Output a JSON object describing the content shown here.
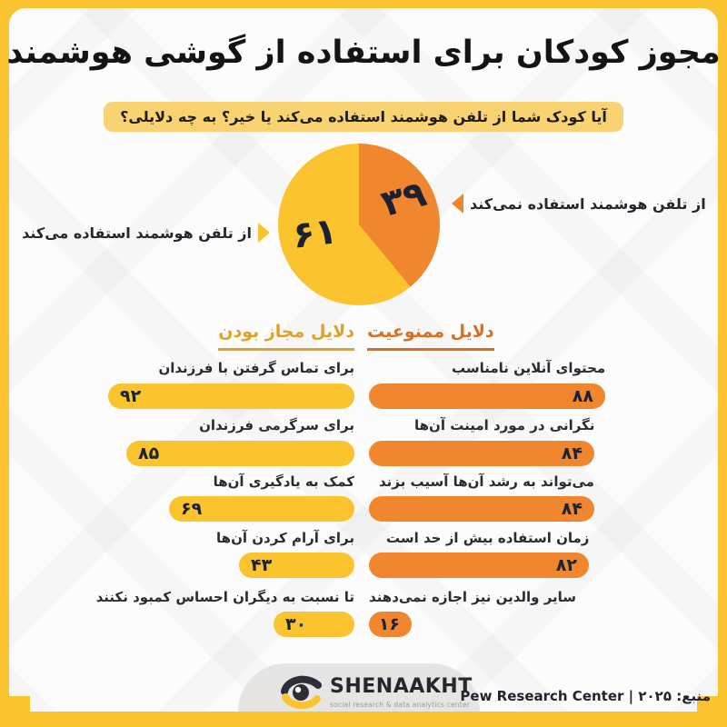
{
  "colors": {
    "frame_yellow": "#FCC330",
    "bar_yellow": "#FBC32D",
    "bar_orange": "#F0862D",
    "header_orange": "#D8701F",
    "header_gold": "#E0A226",
    "number_dark": "#1C2433"
  },
  "title": "مجوز کودکان برای استفاده از گوشی هوشمند",
  "subtitle": "آیا کودک شما از تلفن هوشمند استفاده می‌کند یا خیر؟ به چه دلایلی؟",
  "pie": {
    "not_uses": {
      "label": "از تلفن هوشمند استفاده نمی‌کند",
      "value": 39,
      "display": "۳۹"
    },
    "uses": {
      "label": "از تلفن هوشمند استفاده می‌کند",
      "value": 61,
      "display": "۶۱"
    }
  },
  "bars": {
    "right": {
      "header": "دلایل ممنوعیت",
      "rows": [
        {
          "label": "محتوای آنلاین نامناسب",
          "value": 88,
          "display": "۸۸"
        },
        {
          "label": "نگرانی در مورد امینت آن‌ها",
          "value": 84,
          "display": "۸۴"
        },
        {
          "label": "می‌تواند به رشد آن‌ها آسیب بزند",
          "value": 84,
          "display": "۸۴"
        },
        {
          "label": "زمان استفاده بیش از حد است",
          "value": 82,
          "display": "۸۲"
        },
        {
          "label": "سایر والدین نیز اجازه نمی‌دهند",
          "value": 16,
          "display": "۱۶"
        }
      ]
    },
    "left": {
      "header": "دلایل مجاز بودن",
      "rows": [
        {
          "label": "برای تماس گرفتن با فرزندان",
          "value": 92,
          "display": "۹۲"
        },
        {
          "label": "برای سرگرمی فرزندان",
          "value": 85,
          "display": "۸۵"
        },
        {
          "label": "کمک به یادگیری آن‌ها",
          "value": 69,
          "display": "۶۹"
        },
        {
          "label": "برای آرام کردن آن‌ها",
          "value": 43,
          "display": "۴۳"
        },
        {
          "label": "تا نسبت به دیگران احساس کمبود نکنند",
          "value": 30,
          "display": "۳۰"
        }
      ]
    }
  },
  "footer": {
    "brand": "SHENAAKHT",
    "tagline": "social research & data analytics center",
    "source": "منبع: ۲۰۲۵ | Pew Research Center"
  },
  "chart_data": [
    {
      "type": "pie",
      "title": "آیا کودک شما از تلفن هوشمند استفاده می‌کند یا خیر؟",
      "labels": [
        "از تلفن هوشمند استفاده می‌کند",
        "از تلفن هوشمند استفاده نمی‌کند"
      ],
      "values": [
        61,
        39
      ],
      "colors": [
        "#FBC32D",
        "#F0862D"
      ],
      "start_angle": "top",
      "direction": "clockwise",
      "first_slice": "از تلفن هوشمند استفاده نمی‌کند"
    },
    {
      "type": "bar",
      "orientation": "horizontal",
      "title": "دلایل ممنوعیت",
      "categories": [
        "محتوای آنلاین نامناسب",
        "نگرانی در مورد امینت آن‌ها",
        "می‌تواند به رشد آن‌ها آسیب بزند",
        "زمان استفاده بیش از حد است",
        "سایر والدین نیز اجازه نمی‌دهند"
      ],
      "values": [
        88,
        84,
        84,
        82,
        16
      ],
      "color": "#F0862D",
      "xlim": [
        0,
        100
      ]
    },
    {
      "type": "bar",
      "orientation": "horizontal",
      "title": "دلایل مجاز بودن",
      "categories": [
        "برای تماس گرفتن با فرزندان",
        "برای سرگرمی فرزندان",
        "کمک به یادگیری آن‌ها",
        "برای آرام کردن آن‌ها",
        "تا نسبت به دیگران احساس کمبود نکنند"
      ],
      "values": [
        92,
        85,
        69,
        43,
        30
      ],
      "color": "#FBC32D",
      "xlim": [
        0,
        100
      ]
    }
  ]
}
